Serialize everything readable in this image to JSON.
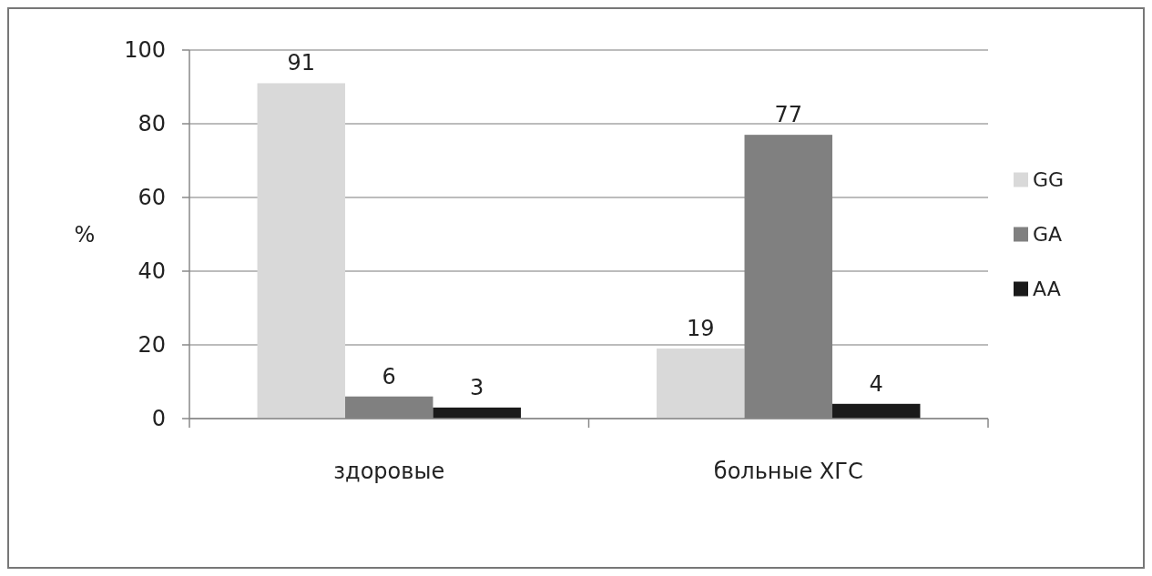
{
  "chart_data": {
    "type": "bar",
    "ylabel": "%",
    "categories": [
      "здоровые",
      "больные ХГС"
    ],
    "series": [
      {
        "name": "GG",
        "color": "#d9d9d9",
        "values": [
          91,
          19
        ]
      },
      {
        "name": "GA",
        "color": "#808080",
        "values": [
          6,
          77
        ]
      },
      {
        "name": "AA",
        "color": "#1a1a1a",
        "values": [
          3,
          4
        ]
      }
    ],
    "ylim": [
      0,
      100
    ],
    "yticks": [
      0,
      20,
      40,
      60,
      80,
      100
    ],
    "grid": "y",
    "legend": "right",
    "data_labels": true
  }
}
